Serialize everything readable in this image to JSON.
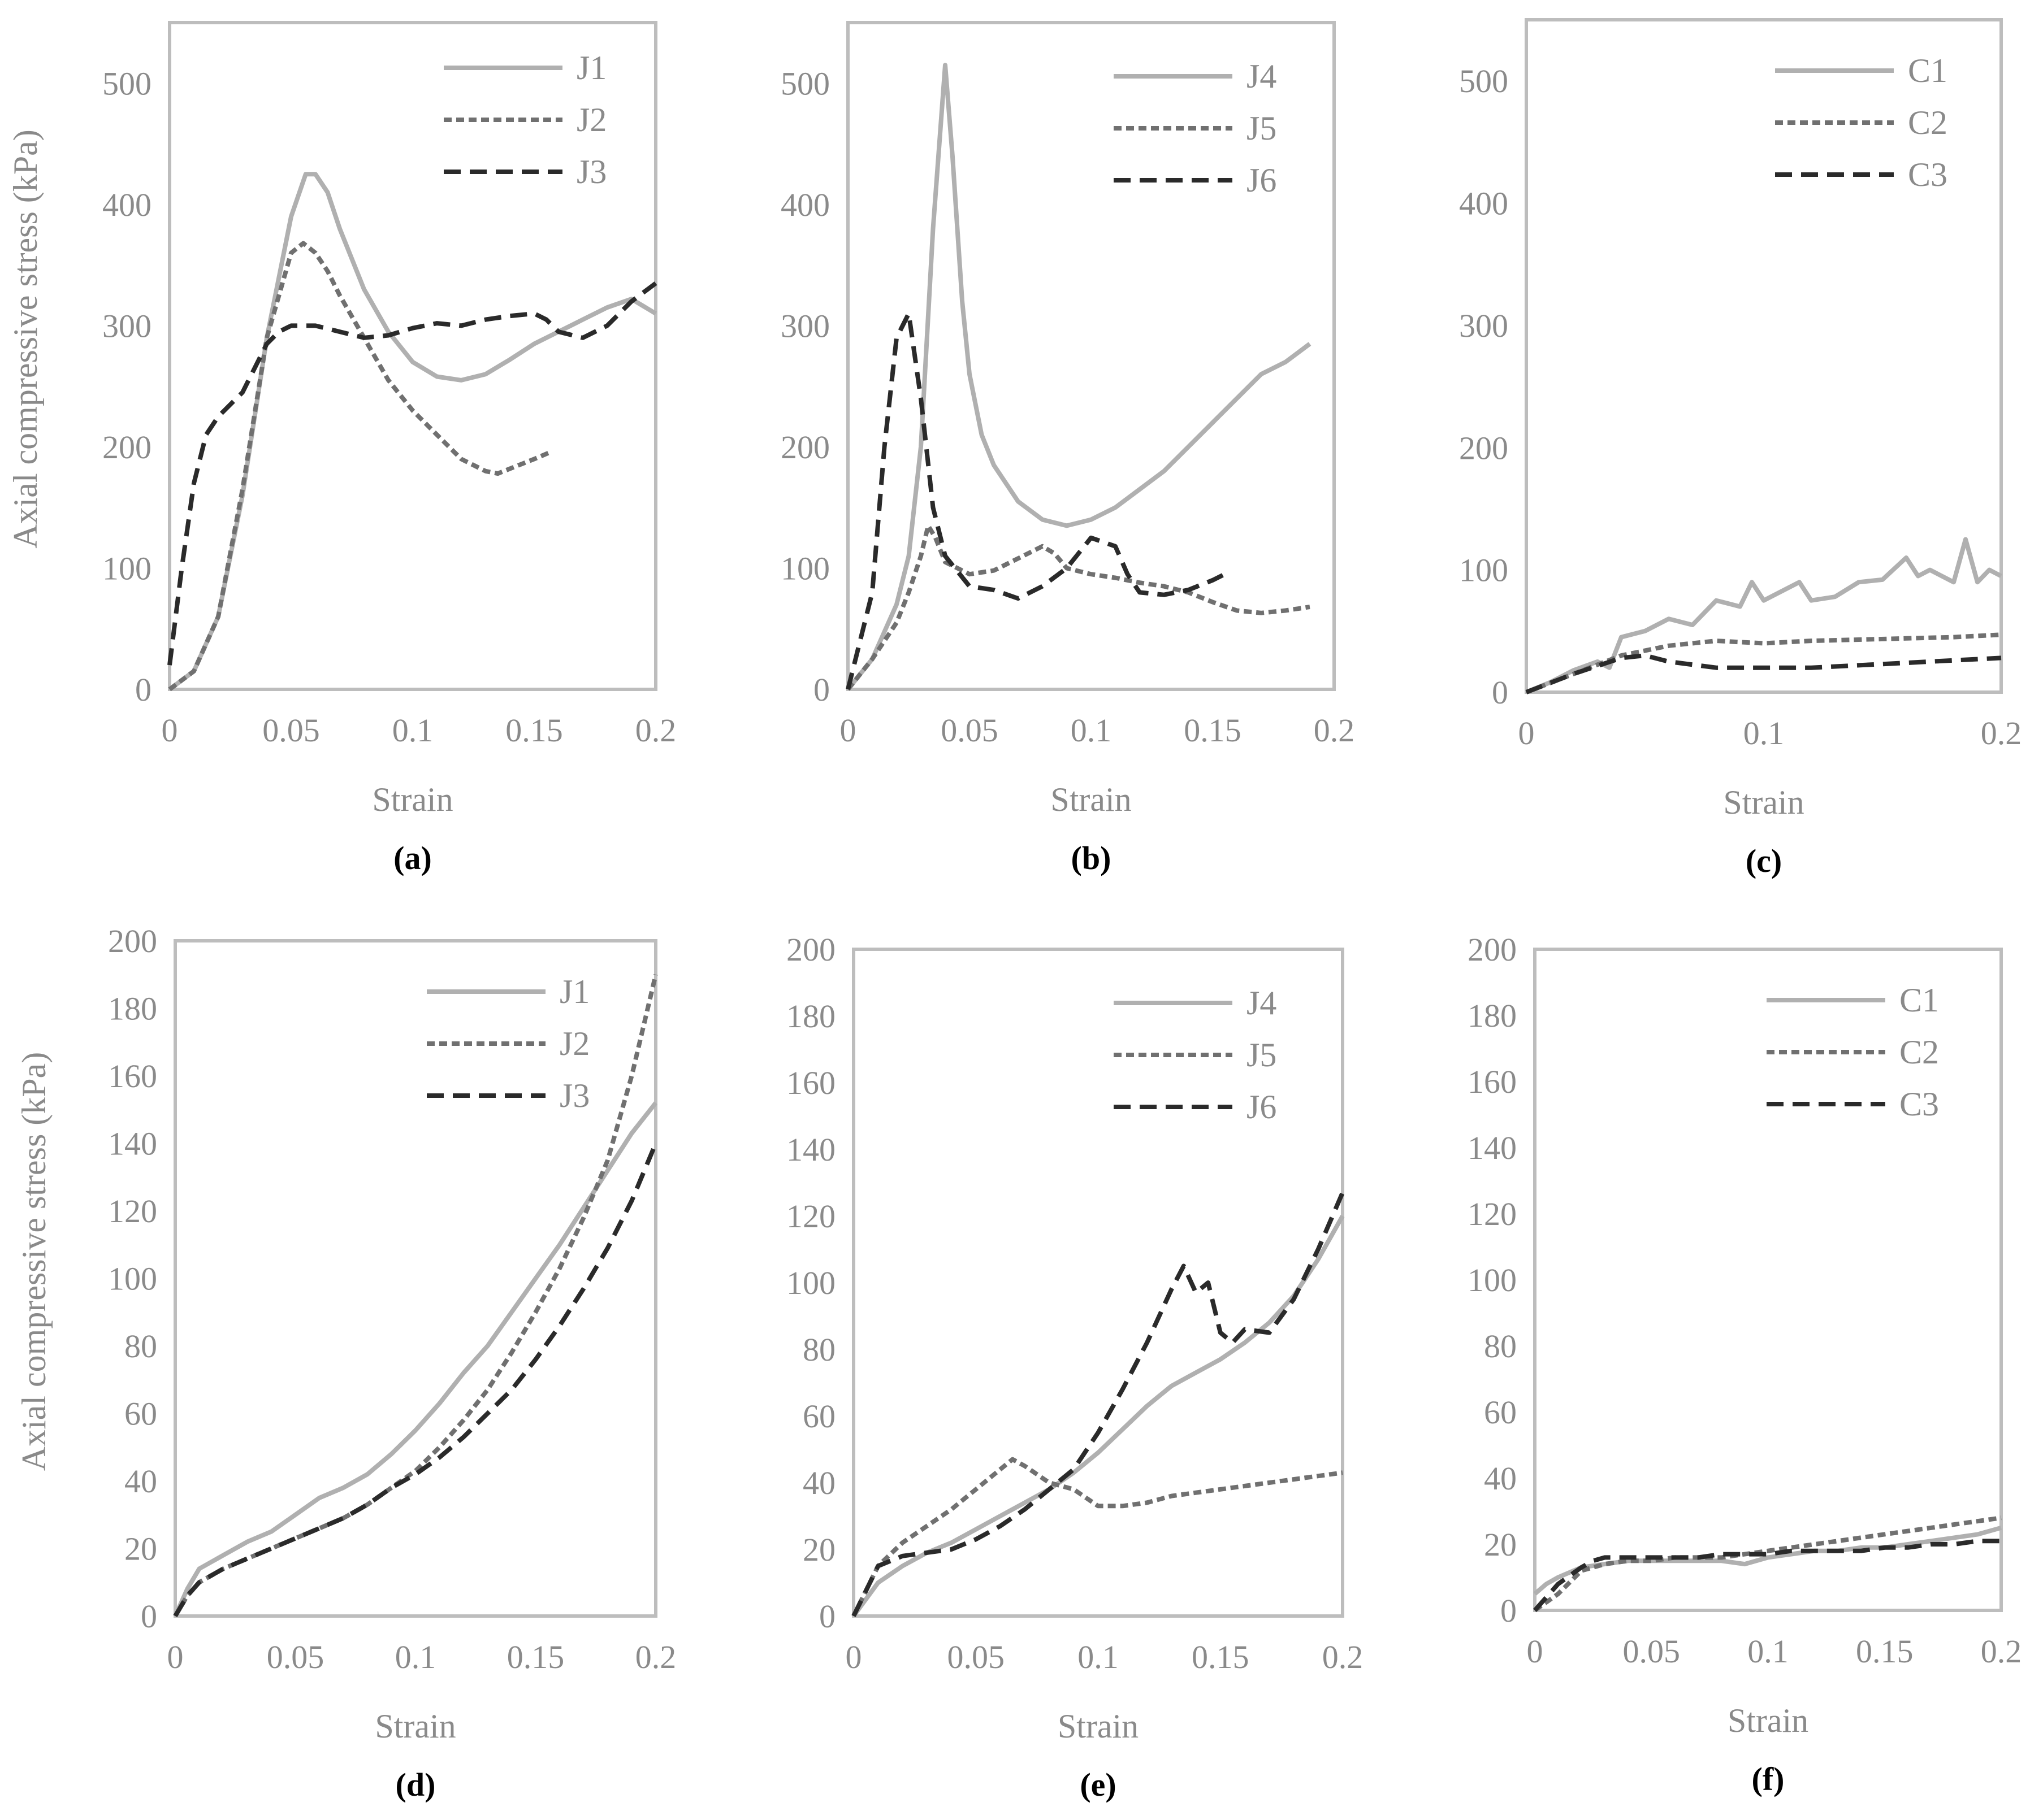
{
  "chart_data": [
    {
      "type": "line",
      "panel_label": "(a)",
      "xlabel": "Strain",
      "ylabel": "Axial compressive stress (kPa)",
      "xlim": [
        0,
        0.2
      ],
      "ylim": [
        0,
        550
      ],
      "xticks": [
        "0",
        "0.05",
        "0.1",
        "0.15",
        "0.2"
      ],
      "yticks": [
        "0",
        "100",
        "200",
        "300",
        "400",
        "500"
      ],
      "legend_position": "top-right",
      "grid": false,
      "series": [
        {
          "name": "J1",
          "style": "solid",
          "color": "#b0b0b0",
          "x": [
            0,
            0.01,
            0.02,
            0.03,
            0.04,
            0.05,
            0.056,
            0.06,
            0.065,
            0.07,
            0.08,
            0.09,
            0.1,
            0.11,
            0.12,
            0.13,
            0.14,
            0.15,
            0.16,
            0.17,
            0.18,
            0.19,
            0.2
          ],
          "y": [
            0,
            15,
            60,
            160,
            290,
            390,
            425,
            425,
            410,
            380,
            330,
            295,
            270,
            258,
            255,
            260,
            272,
            285,
            295,
            305,
            315,
            322,
            310
          ]
        },
        {
          "name": "J2",
          "style": "dotted",
          "color": "#707070",
          "x": [
            0,
            0.01,
            0.02,
            0.03,
            0.04,
            0.05,
            0.055,
            0.06,
            0.065,
            0.07,
            0.08,
            0.09,
            0.1,
            0.11,
            0.12,
            0.13,
            0.135,
            0.14,
            0.15,
            0.157
          ],
          "y": [
            0,
            15,
            60,
            165,
            290,
            360,
            368,
            360,
            345,
            325,
            290,
            255,
            230,
            210,
            190,
            180,
            178,
            182,
            190,
            196
          ]
        },
        {
          "name": "J3",
          "style": "dashed",
          "color": "#2a2a2a",
          "x": [
            0,
            0.005,
            0.01,
            0.015,
            0.02,
            0.03,
            0.04,
            0.045,
            0.05,
            0.06,
            0.07,
            0.08,
            0.09,
            0.1,
            0.11,
            0.12,
            0.13,
            0.14,
            0.15,
            0.155,
            0.16,
            0.17,
            0.18,
            0.19,
            0.2
          ],
          "y": [
            20,
            100,
            170,
            210,
            225,
            245,
            285,
            295,
            300,
            300,
            295,
            290,
            292,
            298,
            302,
            300,
            305,
            308,
            310,
            305,
            295,
            290,
            300,
            320,
            335
          ]
        }
      ]
    },
    {
      "type": "line",
      "panel_label": "(b)",
      "xlabel": "Strain",
      "ylabel": "",
      "xlim": [
        0,
        0.2
      ],
      "ylim": [
        0,
        550
      ],
      "xticks": [
        "0",
        "0.05",
        "0.1",
        "0.15",
        "0.2"
      ],
      "yticks": [
        "0",
        "100",
        "200",
        "300",
        "400",
        "500"
      ],
      "legend_position": "top-right",
      "grid": false,
      "series": [
        {
          "name": "J4",
          "style": "solid",
          "color": "#b0b0b0",
          "x": [
            0,
            0.01,
            0.02,
            0.025,
            0.03,
            0.035,
            0.04,
            0.043,
            0.047,
            0.05,
            0.055,
            0.06,
            0.07,
            0.08,
            0.09,
            0.1,
            0.11,
            0.12,
            0.13,
            0.14,
            0.15,
            0.16,
            0.17,
            0.18,
            0.19
          ],
          "y": [
            0,
            25,
            70,
            110,
            200,
            380,
            515,
            440,
            320,
            260,
            210,
            185,
            155,
            140,
            135,
            140,
            150,
            165,
            180,
            200,
            220,
            240,
            260,
            270,
            285
          ]
        },
        {
          "name": "J5",
          "style": "dotted",
          "color": "#707070",
          "x": [
            0,
            0.01,
            0.02,
            0.025,
            0.03,
            0.033,
            0.036,
            0.04,
            0.05,
            0.06,
            0.07,
            0.08,
            0.085,
            0.09,
            0.1,
            0.11,
            0.12,
            0.13,
            0.14,
            0.15,
            0.16,
            0.17,
            0.18,
            0.19
          ],
          "y": [
            0,
            25,
            55,
            80,
            110,
            135,
            125,
            105,
            95,
            98,
            108,
            118,
            112,
            100,
            95,
            92,
            88,
            85,
            80,
            72,
            65,
            63,
            65,
            68
          ]
        },
        {
          "name": "J6",
          "style": "dashed",
          "color": "#2a2a2a",
          "x": [
            0,
            0.01,
            0.015,
            0.02,
            0.025,
            0.03,
            0.035,
            0.04,
            0.05,
            0.06,
            0.07,
            0.08,
            0.09,
            0.1,
            0.11,
            0.115,
            0.12,
            0.13,
            0.14,
            0.15,
            0.155
          ],
          "y": [
            0,
            80,
            200,
            290,
            310,
            240,
            150,
            110,
            85,
            82,
            75,
            85,
            100,
            125,
            118,
            95,
            80,
            78,
            82,
            90,
            95
          ]
        }
      ]
    },
    {
      "type": "line",
      "panel_label": "(c)",
      "xlabel": "Strain",
      "ylabel": "",
      "xlim": [
        0,
        0.2
      ],
      "ylim": [
        0,
        550
      ],
      "xticks": [
        "0",
        "0.1",
        "0.2"
      ],
      "yticks": [
        "0",
        "100",
        "200",
        "300",
        "400",
        "500"
      ],
      "legend_position": "top-right",
      "grid": false,
      "series": [
        {
          "name": "C1",
          "style": "solid",
          "color": "#b0b0b0",
          "x": [
            0,
            0.01,
            0.02,
            0.03,
            0.035,
            0.04,
            0.05,
            0.06,
            0.07,
            0.08,
            0.09,
            0.095,
            0.1,
            0.11,
            0.115,
            0.12,
            0.13,
            0.14,
            0.15,
            0.16,
            0.165,
            0.17,
            0.18,
            0.185,
            0.19,
            0.195,
            0.2
          ],
          "y": [
            0,
            8,
            18,
            25,
            20,
            45,
            50,
            60,
            55,
            75,
            70,
            90,
            75,
            85,
            90,
            75,
            78,
            90,
            92,
            110,
            95,
            100,
            90,
            125,
            90,
            100,
            95
          ]
        },
        {
          "name": "C2",
          "style": "dotted",
          "color": "#707070",
          "x": [
            0,
            0.02,
            0.04,
            0.06,
            0.08,
            0.1,
            0.12,
            0.14,
            0.16,
            0.18,
            0.2
          ],
          "y": [
            0,
            15,
            30,
            38,
            42,
            40,
            42,
            43,
            44,
            45,
            47
          ]
        },
        {
          "name": "C3",
          "style": "dashed",
          "color": "#2a2a2a",
          "x": [
            0,
            0.02,
            0.04,
            0.05,
            0.06,
            0.08,
            0.1,
            0.12,
            0.14,
            0.16,
            0.18,
            0.2
          ],
          "y": [
            0,
            15,
            28,
            30,
            25,
            20,
            20,
            20,
            22,
            24,
            26,
            28
          ]
        }
      ]
    },
    {
      "type": "line",
      "panel_label": "(d)",
      "xlabel": "Strain",
      "ylabel": "Axial compressive stress (kPa)",
      "xlim": [
        0,
        0.2
      ],
      "ylim": [
        0,
        200
      ],
      "xticks": [
        "0",
        "0.05",
        "0.1",
        "0.15",
        "0.2"
      ],
      "yticks": [
        "0",
        "20",
        "40",
        "60",
        "80",
        "100",
        "120",
        "140",
        "160",
        "180",
        "200"
      ],
      "legend_position": "top-right",
      "grid": false,
      "series": [
        {
          "name": "J1",
          "style": "solid",
          "color": "#b0b0b0",
          "x": [
            0,
            0.005,
            0.01,
            0.02,
            0.03,
            0.04,
            0.05,
            0.06,
            0.07,
            0.08,
            0.09,
            0.1,
            0.11,
            0.12,
            0.13,
            0.14,
            0.15,
            0.16,
            0.17,
            0.18,
            0.19,
            0.2
          ],
          "y": [
            0,
            8,
            14,
            18,
            22,
            25,
            30,
            35,
            38,
            42,
            48,
            55,
            63,
            72,
            80,
            90,
            100,
            110,
            121,
            132,
            143,
            152
          ]
        },
        {
          "name": "J2",
          "style": "dotted",
          "color": "#707070",
          "x": [
            0,
            0.005,
            0.01,
            0.02,
            0.03,
            0.04,
            0.05,
            0.06,
            0.07,
            0.08,
            0.09,
            0.1,
            0.11,
            0.12,
            0.13,
            0.14,
            0.15,
            0.16,
            0.17,
            0.18,
            0.19,
            0.2
          ],
          "y": [
            0,
            6,
            10,
            14,
            17,
            20,
            23,
            26,
            29,
            33,
            38,
            43,
            50,
            58,
            67,
            78,
            90,
            103,
            118,
            135,
            160,
            190
          ]
        },
        {
          "name": "J3",
          "style": "dashed",
          "color": "#2a2a2a",
          "x": [
            0,
            0.005,
            0.01,
            0.02,
            0.03,
            0.04,
            0.05,
            0.06,
            0.07,
            0.08,
            0.09,
            0.1,
            0.11,
            0.12,
            0.13,
            0.14,
            0.15,
            0.16,
            0.17,
            0.18,
            0.19,
            0.2
          ],
          "y": [
            0,
            6,
            10,
            14,
            17,
            20,
            23,
            26,
            29,
            33,
            38,
            42,
            47,
            53,
            60,
            67,
            76,
            86,
            97,
            109,
            123,
            140
          ]
        }
      ]
    },
    {
      "type": "line",
      "panel_label": "(e)",
      "xlabel": "Strain",
      "ylabel": "",
      "xlim": [
        0,
        0.2
      ],
      "ylim": [
        0,
        200
      ],
      "xticks": [
        "0",
        "0.05",
        "0.1",
        "0.15",
        "0.2"
      ],
      "yticks": [
        "0",
        "20",
        "40",
        "60",
        "80",
        "100",
        "120",
        "140",
        "160",
        "180",
        "200"
      ],
      "legend_position": "top-right",
      "grid": false,
      "series": [
        {
          "name": "J4",
          "style": "solid",
          "color": "#b0b0b0",
          "x": [
            0,
            0.01,
            0.02,
            0.03,
            0.04,
            0.05,
            0.06,
            0.07,
            0.08,
            0.09,
            0.1,
            0.11,
            0.12,
            0.13,
            0.14,
            0.15,
            0.16,
            0.17,
            0.18,
            0.19,
            0.2
          ],
          "y": [
            0,
            10,
            15,
            19,
            22,
            26,
            30,
            34,
            38,
            43,
            49,
            56,
            63,
            69,
            73,
            77,
            82,
            88,
            96,
            107,
            120
          ]
        },
        {
          "name": "J5",
          "style": "dotted",
          "color": "#707070",
          "x": [
            0,
            0.01,
            0.02,
            0.03,
            0.04,
            0.05,
            0.06,
            0.065,
            0.07,
            0.08,
            0.09,
            0.1,
            0.11,
            0.12,
            0.13,
            0.14,
            0.15,
            0.16,
            0.17,
            0.18,
            0.19,
            0.2
          ],
          "y": [
            0,
            15,
            22,
            27,
            32,
            38,
            44,
            47,
            45,
            40,
            38,
            33,
            33,
            34,
            36,
            37,
            38,
            39,
            40,
            41,
            42,
            43
          ]
        },
        {
          "name": "J6",
          "style": "dashed",
          "color": "#2a2a2a",
          "x": [
            0,
            0.01,
            0.02,
            0.03,
            0.04,
            0.05,
            0.06,
            0.07,
            0.08,
            0.09,
            0.1,
            0.11,
            0.12,
            0.13,
            0.135,
            0.14,
            0.145,
            0.15,
            0.155,
            0.16,
            0.17,
            0.18,
            0.19,
            0.2
          ],
          "y": [
            0,
            15,
            18,
            19,
            20,
            23,
            27,
            32,
            38,
            44,
            55,
            68,
            82,
            98,
            105,
            97,
            100,
            85,
            82,
            86,
            85,
            95,
            110,
            127
          ]
        }
      ]
    },
    {
      "type": "line",
      "panel_label": "(f)",
      "xlabel": "Strain",
      "ylabel": "",
      "xlim": [
        0,
        0.2
      ],
      "ylim": [
        0,
        200
      ],
      "xticks": [
        "0",
        "0.05",
        "0.1",
        "0.15",
        "0.2"
      ],
      "yticks": [
        "0",
        "20",
        "40",
        "60",
        "80",
        "100",
        "120",
        "140",
        "160",
        "180",
        "200"
      ],
      "legend_position": "top-right",
      "grid": false,
      "series": [
        {
          "name": "C1",
          "style": "solid",
          "color": "#b0b0b0",
          "x": [
            0,
            0.005,
            0.01,
            0.02,
            0.03,
            0.04,
            0.05,
            0.06,
            0.07,
            0.08,
            0.09,
            0.1,
            0.11,
            0.12,
            0.13,
            0.14,
            0.15,
            0.16,
            0.17,
            0.18,
            0.19,
            0.2
          ],
          "y": [
            5,
            8,
            10,
            13,
            14,
            15,
            15,
            15,
            15,
            15,
            14,
            16,
            17,
            18,
            18,
            19,
            19,
            20,
            21,
            22,
            23,
            25
          ]
        },
        {
          "name": "C2",
          "style": "dotted",
          "color": "#707070",
          "x": [
            0,
            0.01,
            0.02,
            0.03,
            0.04,
            0.05,
            0.06,
            0.07,
            0.08,
            0.09,
            0.1,
            0.11,
            0.12,
            0.13,
            0.14,
            0.15,
            0.16,
            0.17,
            0.18,
            0.19,
            0.2
          ],
          "y": [
            0,
            5,
            12,
            14,
            15,
            15,
            16,
            16,
            16,
            17,
            18,
            19,
            20,
            21,
            22,
            23,
            24,
            25,
            26,
            27,
            28
          ]
        },
        {
          "name": "C3",
          "style": "dashed",
          "color": "#2a2a2a",
          "x": [
            0,
            0.01,
            0.02,
            0.025,
            0.03,
            0.04,
            0.05,
            0.06,
            0.07,
            0.08,
            0.09,
            0.1,
            0.11,
            0.12,
            0.13,
            0.14,
            0.15,
            0.16,
            0.17,
            0.18,
            0.19,
            0.2
          ],
          "y": [
            0,
            8,
            13,
            15,
            16,
            16,
            16,
            16,
            16,
            17,
            17,
            17,
            18,
            18,
            18,
            18,
            19,
            19,
            20,
            20,
            21,
            21
          ]
        }
      ]
    }
  ]
}
